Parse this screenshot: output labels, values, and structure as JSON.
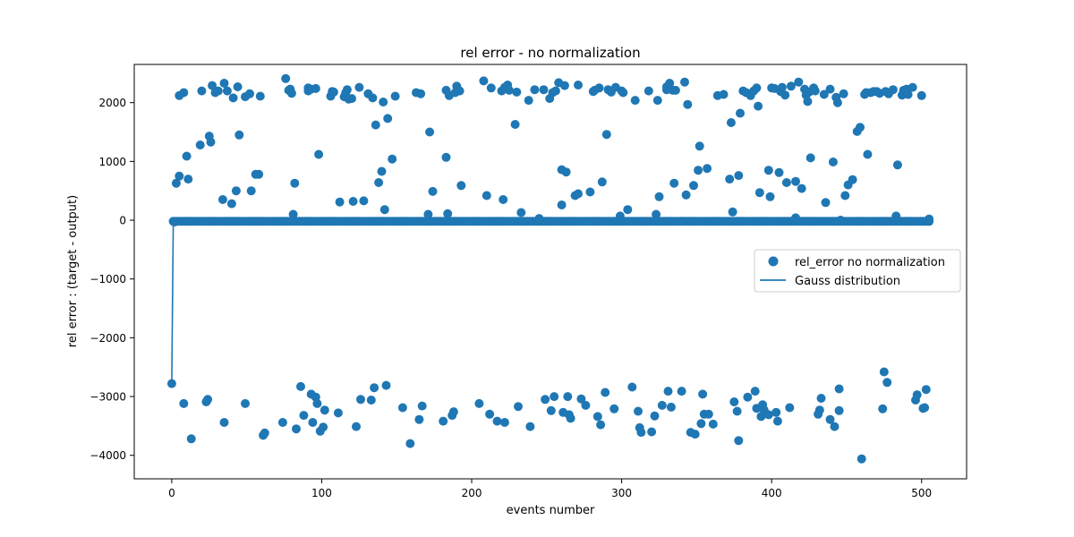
{
  "chart_data": {
    "type": "scatter",
    "title": "rel error - no normalization",
    "xlabel": "events number",
    "ylabel": "rel error : (target - output)",
    "xlim": [
      -25,
      530
    ],
    "ylim": [
      -4400,
      2650
    ],
    "xticks": [
      0,
      100,
      200,
      300,
      400,
      500
    ],
    "yticks": [
      -4000,
      -3000,
      -2000,
      -1000,
      0,
      1000,
      2000
    ],
    "grid": false,
    "legend_position": "center-right",
    "colors": {
      "series": "#1f77b4",
      "axes": "#000000",
      "background": "#ffffff"
    },
    "series": [
      {
        "name": "rel_error no normalization",
        "kind": "scatter",
        "points": [
          [
            0,
            -2780
          ],
          [
            2,
            -30
          ],
          [
            3,
            630
          ],
          [
            5,
            750
          ],
          [
            5,
            2120
          ],
          [
            8,
            2170
          ],
          [
            8,
            -3120
          ],
          [
            10,
            1090
          ],
          [
            11,
            700
          ],
          [
            13,
            -3720
          ],
          [
            19,
            1280
          ],
          [
            20,
            2200
          ],
          [
            23,
            -3090
          ],
          [
            24,
            -3050
          ],
          [
            25,
            1430
          ],
          [
            26,
            1330
          ],
          [
            27,
            2290
          ],
          [
            29,
            2170
          ],
          [
            31,
            2200
          ],
          [
            34,
            350
          ],
          [
            35,
            2330
          ],
          [
            35,
            -3440
          ],
          [
            37,
            2200
          ],
          [
            40,
            280
          ],
          [
            41,
            2080
          ],
          [
            43,
            500
          ],
          [
            44,
            2270
          ],
          [
            45,
            1450
          ],
          [
            49,
            2100
          ],
          [
            49,
            -3120
          ],
          [
            52,
            2150
          ],
          [
            53,
            500
          ],
          [
            56,
            780
          ],
          [
            58,
            780
          ],
          [
            59,
            2110
          ],
          [
            61,
            -3660
          ],
          [
            62,
            -3620
          ],
          [
            74,
            -3440
          ],
          [
            76,
            2410
          ],
          [
            78,
            2210
          ],
          [
            79,
            2230
          ],
          [
            80,
            2160
          ],
          [
            81,
            100
          ],
          [
            82,
            630
          ],
          [
            83,
            -3550
          ],
          [
            86,
            -2830
          ],
          [
            88,
            -3320
          ],
          [
            91,
            2200
          ],
          [
            91,
            2250
          ],
          [
            93,
            2230
          ],
          [
            93,
            -2960
          ],
          [
            94,
            -3440
          ],
          [
            96,
            2240
          ],
          [
            96,
            -3010
          ],
          [
            98,
            1120
          ],
          [
            97,
            -3120
          ],
          [
            99,
            -3590
          ],
          [
            101,
            -3520
          ],
          [
            102,
            -3230
          ],
          [
            106,
            2110
          ],
          [
            107,
            2190
          ],
          [
            108,
            2180
          ],
          [
            111,
            -3280
          ],
          [
            112,
            310
          ],
          [
            115,
            2100
          ],
          [
            116,
            2170
          ],
          [
            117,
            2220
          ],
          [
            118,
            2060
          ],
          [
            120,
            2070
          ],
          [
            121,
            320
          ],
          [
            123,
            -3510
          ],
          [
            125,
            2260
          ],
          [
            126,
            -3050
          ],
          [
            128,
            330
          ],
          [
            131,
            2150
          ],
          [
            133,
            -3060
          ],
          [
            134,
            2080
          ],
          [
            135,
            -2850
          ],
          [
            136,
            1620
          ],
          [
            138,
            640
          ],
          [
            140,
            830
          ],
          [
            141,
            2010
          ],
          [
            142,
            180
          ],
          [
            143,
            -2810
          ],
          [
            144,
            1730
          ],
          [
            147,
            1040
          ],
          [
            149,
            2110
          ],
          [
            154,
            -3190
          ],
          [
            159,
            -3800
          ],
          [
            163,
            2170
          ],
          [
            165,
            -3390
          ],
          [
            166,
            2150
          ],
          [
            167,
            -3160
          ],
          [
            171,
            100
          ],
          [
            172,
            1500
          ],
          [
            174,
            490
          ],
          [
            181,
            -3420
          ],
          [
            183,
            2210
          ],
          [
            183,
            1070
          ],
          [
            184,
            110
          ],
          [
            185,
            2120
          ],
          [
            187,
            -3320
          ],
          [
            188,
            -3260
          ],
          [
            189,
            2170
          ],
          [
            190,
            2280
          ],
          [
            192,
            2200
          ],
          [
            193,
            590
          ],
          [
            205,
            -3120
          ],
          [
            208,
            2370
          ],
          [
            210,
            420
          ],
          [
            212,
            -3300
          ],
          [
            213,
            2250
          ],
          [
            217,
            -3420
          ],
          [
            220,
            2200
          ],
          [
            221,
            350
          ],
          [
            222,
            2260
          ],
          [
            222,
            -3440
          ],
          [
            224,
            2300
          ],
          [
            225,
            2210
          ],
          [
            229,
            1630
          ],
          [
            230,
            2180
          ],
          [
            231,
            -3170
          ],
          [
            233,
            130
          ],
          [
            238,
            2040
          ],
          [
            239,
            -3510
          ],
          [
            242,
            2220
          ],
          [
            245,
            30
          ],
          [
            248,
            2220
          ],
          [
            249,
            -3050
          ],
          [
            252,
            2070
          ],
          [
            253,
            -3240
          ],
          [
            254,
            2170
          ],
          [
            255,
            -3000
          ],
          [
            256,
            2200
          ],
          [
            258,
            2340
          ],
          [
            260,
            860
          ],
          [
            260,
            260
          ],
          [
            261,
            -3270
          ],
          [
            262,
            2290
          ],
          [
            263,
            820
          ],
          [
            264,
            -3000
          ],
          [
            265,
            -3310
          ],
          [
            266,
            -3370
          ],
          [
            269,
            420
          ],
          [
            271,
            2300
          ],
          [
            271,
            450
          ],
          [
            273,
            -3040
          ],
          [
            276,
            -3150
          ],
          [
            279,
            480
          ],
          [
            281,
            2190
          ],
          [
            282,
            2210
          ],
          [
            284,
            -3340
          ],
          [
            285,
            2250
          ],
          [
            286,
            -3480
          ],
          [
            287,
            650
          ],
          [
            289,
            -2930
          ],
          [
            290,
            1460
          ],
          [
            291,
            2220
          ],
          [
            293,
            2180
          ],
          [
            295,
            -3210
          ],
          [
            296,
            2260
          ],
          [
            299,
            70
          ],
          [
            300,
            2200
          ],
          [
            301,
            2170
          ],
          [
            304,
            180
          ],
          [
            307,
            -2840
          ],
          [
            309,
            2040
          ],
          [
            311,
            -3250
          ],
          [
            312,
            -3530
          ],
          [
            313,
            -3610
          ],
          [
            318,
            2200
          ],
          [
            320,
            -3600
          ],
          [
            322,
            -3330
          ],
          [
            323,
            100
          ],
          [
            324,
            2040
          ],
          [
            325,
            400
          ],
          [
            327,
            -3150
          ],
          [
            330,
            2220
          ],
          [
            330,
            2270
          ],
          [
            331,
            -2910
          ],
          [
            332,
            2330
          ],
          [
            333,
            -3180
          ],
          [
            334,
            2210
          ],
          [
            335,
            630
          ],
          [
            336,
            2210
          ],
          [
            340,
            -2910
          ],
          [
            342,
            2350
          ],
          [
            343,
            430
          ],
          [
            344,
            1970
          ],
          [
            346,
            -3610
          ],
          [
            348,
            590
          ],
          [
            349,
            -3640
          ],
          [
            351,
            850
          ],
          [
            352,
            1260
          ],
          [
            353,
            -3460
          ],
          [
            354,
            -2960
          ],
          [
            355,
            -3300
          ],
          [
            357,
            880
          ],
          [
            358,
            -3300
          ],
          [
            361,
            -3470
          ],
          [
            364,
            2120
          ],
          [
            368,
            2140
          ],
          [
            372,
            700
          ],
          [
            373,
            1660
          ],
          [
            374,
            140
          ],
          [
            375,
            -3090
          ],
          [
            377,
            -3250
          ],
          [
            378,
            760
          ],
          [
            378,
            -3750
          ],
          [
            379,
            1820
          ],
          [
            381,
            2200
          ],
          [
            383,
            2170
          ],
          [
            384,
            -3010
          ],
          [
            386,
            2120
          ],
          [
            388,
            2200
          ],
          [
            389,
            -2910
          ],
          [
            390,
            2250
          ],
          [
            390,
            -3200
          ],
          [
            391,
            1940
          ],
          [
            392,
            470
          ],
          [
            393,
            -3340
          ],
          [
            394,
            -3140
          ],
          [
            395,
            -3230
          ],
          [
            398,
            850
          ],
          [
            398,
            -3310
          ],
          [
            399,
            400
          ],
          [
            400,
            2250
          ],
          [
            402,
            2240
          ],
          [
            403,
            -3270
          ],
          [
            404,
            -3420
          ],
          [
            405,
            810
          ],
          [
            406,
            2190
          ],
          [
            407,
            2260
          ],
          [
            409,
            2130
          ],
          [
            410,
            640
          ],
          [
            412,
            -3190
          ],
          [
            413,
            2280
          ],
          [
            416,
            40
          ],
          [
            416,
            660
          ],
          [
            418,
            2350
          ],
          [
            420,
            540
          ],
          [
            422,
            2230
          ],
          [
            423,
            2130
          ],
          [
            424,
            2020
          ],
          [
            425,
            2180
          ],
          [
            426,
            1060
          ],
          [
            428,
            2250
          ],
          [
            429,
            2200
          ],
          [
            431,
            -3300
          ],
          [
            432,
            -3230
          ],
          [
            433,
            -3030
          ],
          [
            435,
            2140
          ],
          [
            436,
            300
          ],
          [
            439,
            2230
          ],
          [
            439,
            -3390
          ],
          [
            441,
            990
          ],
          [
            442,
            -3510
          ],
          [
            443,
            2090
          ],
          [
            444,
            2000
          ],
          [
            445,
            -2870
          ],
          [
            445,
            -3240
          ],
          [
            446,
            0
          ],
          [
            448,
            2150
          ],
          [
            449,
            420
          ],
          [
            451,
            600
          ],
          [
            454,
            690
          ],
          [
            457,
            1510
          ],
          [
            459,
            1580
          ],
          [
            460,
            -4060
          ],
          [
            462,
            2140
          ],
          [
            463,
            2170
          ],
          [
            464,
            1120
          ],
          [
            466,
            2170
          ],
          [
            468,
            2190
          ],
          [
            470,
            2190
          ],
          [
            472,
            2160
          ],
          [
            474,
            -3210
          ],
          [
            475,
            -2580
          ],
          [
            476,
            2190
          ],
          [
            477,
            -2760
          ],
          [
            478,
            2150
          ],
          [
            481,
            2220
          ],
          [
            483,
            70
          ],
          [
            484,
            940
          ],
          [
            487,
            2130
          ],
          [
            488,
            2210
          ],
          [
            489,
            2150
          ],
          [
            490,
            2230
          ],
          [
            491,
            2140
          ],
          [
            494,
            2260
          ],
          [
            496,
            -3060
          ],
          [
            497,
            -2970
          ],
          [
            500,
            2120
          ],
          [
            501,
            -3200
          ],
          [
            502,
            -3190
          ],
          [
            503,
            -2880
          ],
          [
            505,
            20
          ]
        ]
      },
      {
        "name": "Gauss distribution",
        "kind": "line",
        "points": [
          [
            0,
            -2780
          ],
          [
            1,
            -30
          ],
          [
            50,
            -20
          ],
          [
            100,
            -10
          ],
          [
            150,
            0
          ],
          [
            200,
            0
          ],
          [
            250,
            0
          ],
          [
            300,
            0
          ],
          [
            350,
            0
          ],
          [
            400,
            0
          ],
          [
            450,
            0
          ],
          [
            505,
            0
          ]
        ]
      }
    ],
    "baseline_cluster": {
      "description_free_values": true,
      "y": -20,
      "x_start": 1,
      "x_end": 505,
      "step": 2
    }
  }
}
